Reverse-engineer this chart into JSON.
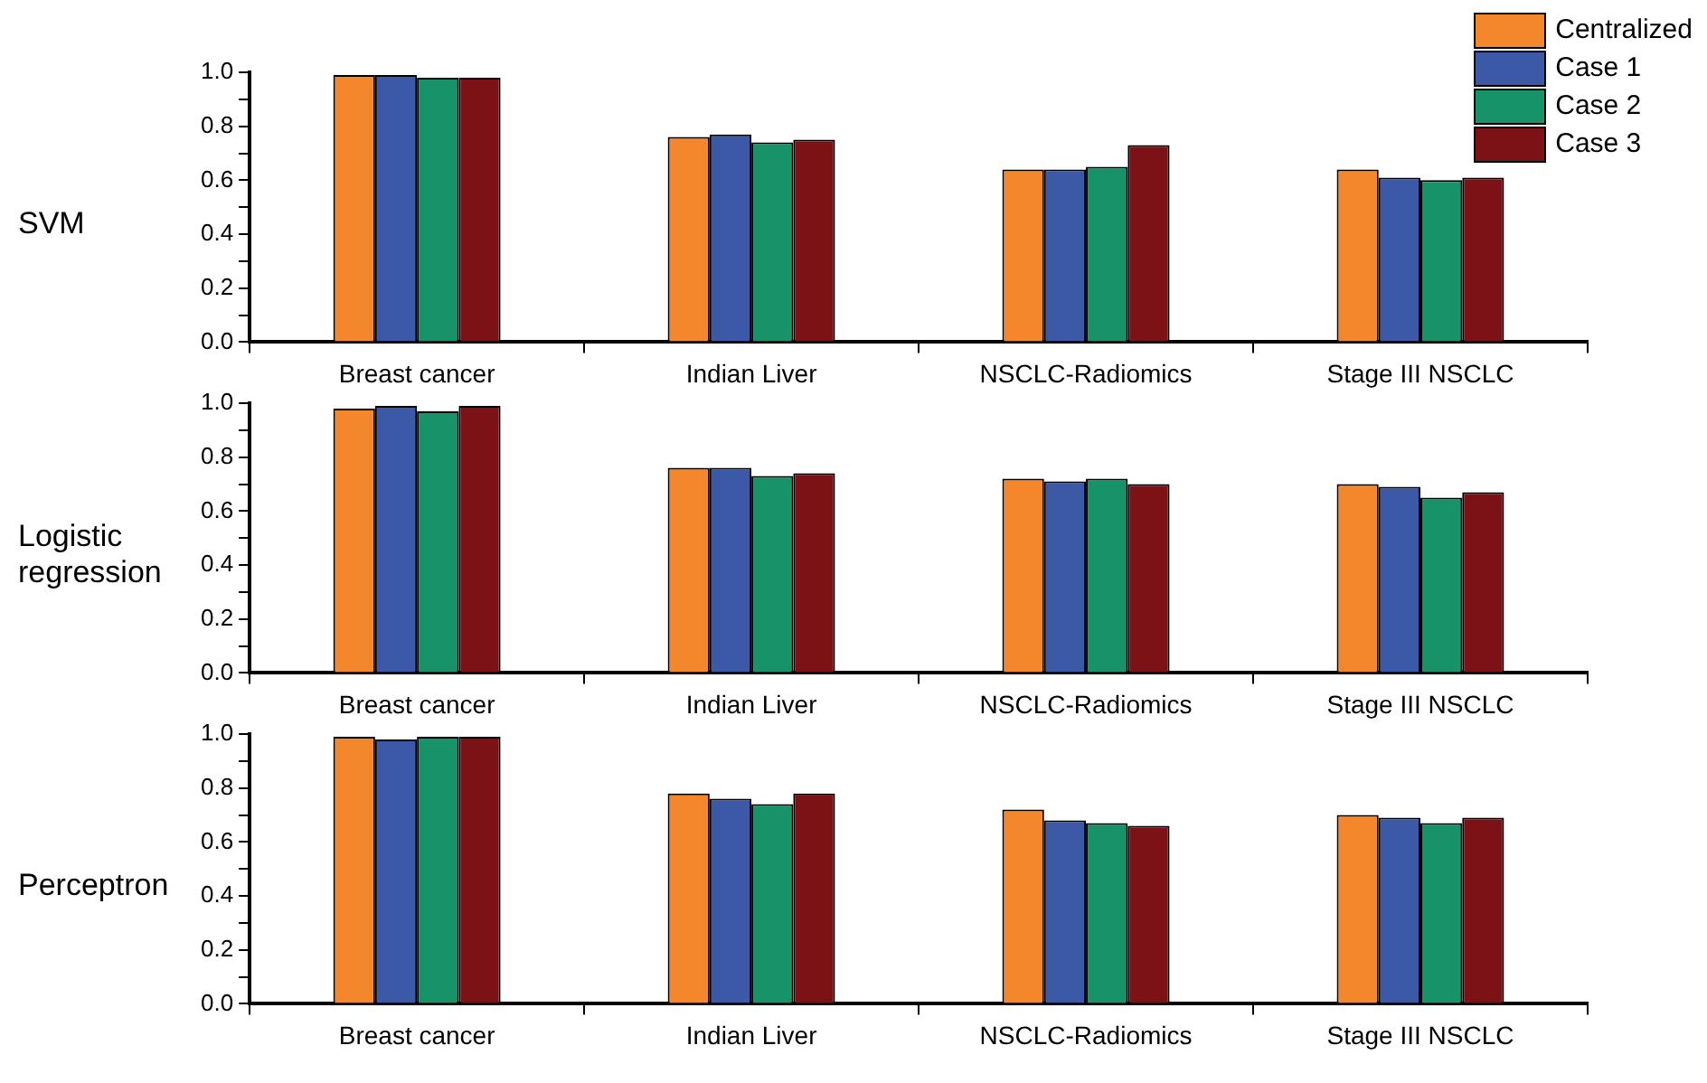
{
  "chart_data": [
    {
      "type": "bar",
      "ylabel": "SVM",
      "categories": [
        "Breast cancer",
        "Indian Liver",
        "NSCLC-Radiomics",
        "Stage III NSCLC"
      ],
      "ylim": [
        0,
        1
      ],
      "yticks": [
        {
          "value": 0,
          "label": "0.0"
        },
        {
          "value": 0.1,
          "label": null
        },
        {
          "value": 0.2,
          "label": "0.2"
        },
        {
          "value": 0.3,
          "label": null
        },
        {
          "value": 0.4,
          "label": "0.4"
        },
        {
          "value": 0.5,
          "label": null
        },
        {
          "value": 0.6,
          "label": "0.6"
        },
        {
          "value": 0.7,
          "label": null
        },
        {
          "value": 0.8,
          "label": "0.8"
        },
        {
          "value": 0.9,
          "label": null
        },
        {
          "value": 1,
          "label": "1.0"
        }
      ],
      "grid": false,
      "legend": "top right",
      "series": [
        {
          "name": "Centralized",
          "color": "#f4862c",
          "values": [
            0.99,
            0.76,
            0.64,
            0.64
          ]
        },
        {
          "name": "Case 1",
          "color": "#3c59a8",
          "values": [
            0.99,
            0.77,
            0.64,
            0.61
          ]
        },
        {
          "name": "Case 2",
          "color": "#189268",
          "values": [
            0.98,
            0.74,
            0.65,
            0.6
          ]
        },
        {
          "name": "Case 3",
          "color": "#7c1216",
          "values": [
            0.98,
            0.75,
            0.73,
            0.61
          ]
        }
      ]
    },
    {
      "type": "bar",
      "ylabel": "Logistic regression",
      "categories": [
        "Breast cancer",
        "Indian Liver",
        "NSCLC-Radiomics",
        "Stage III NSCLC"
      ],
      "ylim": [
        0,
        1
      ],
      "yticks": [
        {
          "value": 0,
          "label": "0.0"
        },
        {
          "value": 0.1,
          "label": null
        },
        {
          "value": 0.2,
          "label": "0.2"
        },
        {
          "value": 0.3,
          "label": null
        },
        {
          "value": 0.4,
          "label": "0.4"
        },
        {
          "value": 0.5,
          "label": null
        },
        {
          "value": 0.6,
          "label": "0.6"
        },
        {
          "value": 0.7,
          "label": null
        },
        {
          "value": 0.8,
          "label": "0.8"
        },
        {
          "value": 0.9,
          "label": null
        },
        {
          "value": 1,
          "label": "1.0"
        }
      ],
      "grid": false,
      "series": [
        {
          "color": "#f4862c",
          "values": [
            0.98,
            0.76,
            0.72,
            0.7
          ]
        },
        {
          "color": "#3c59a8",
          "values": [
            0.99,
            0.76,
            0.71,
            0.69
          ]
        },
        {
          "color": "#189268",
          "values": [
            0.97,
            0.73,
            0.72,
            0.65
          ]
        },
        {
          "color": "#7c1216",
          "values": [
            0.99,
            0.74,
            0.7,
            0.67
          ]
        }
      ]
    },
    {
      "type": "bar",
      "ylabel": "Perceptron",
      "categories": [
        "Breast cancer",
        "Indian Liver",
        "NSCLC-Radiomics",
        "Stage III NSCLC"
      ],
      "ylim": [
        0,
        1
      ],
      "yticks": [
        {
          "value": 0,
          "label": "0.0"
        },
        {
          "value": 0.1,
          "label": null
        },
        {
          "value": 0.2,
          "label": "0.2"
        },
        {
          "value": 0.3,
          "label": null
        },
        {
          "value": 0.4,
          "label": "0.4"
        },
        {
          "value": 0.5,
          "label": null
        },
        {
          "value": 0.6,
          "label": "0.6"
        },
        {
          "value": 0.7,
          "label": null
        },
        {
          "value": 0.8,
          "label": "0.8"
        },
        {
          "value": 0.9,
          "label": null
        },
        {
          "value": 1,
          "label": "1.0"
        }
      ],
      "grid": false,
      "series": [
        {
          "color": "#f4862c",
          "values": [
            0.99,
            0.78,
            0.72,
            0.7
          ]
        },
        {
          "color": "#3c59a8",
          "values": [
            0.98,
            0.76,
            0.68,
            0.69
          ]
        },
        {
          "color": "#189268",
          "values": [
            0.99,
            0.74,
            0.67,
            0.67
          ]
        },
        {
          "color": "#7c1216",
          "values": [
            0.99,
            0.78,
            0.66,
            0.69
          ]
        }
      ]
    }
  ]
}
